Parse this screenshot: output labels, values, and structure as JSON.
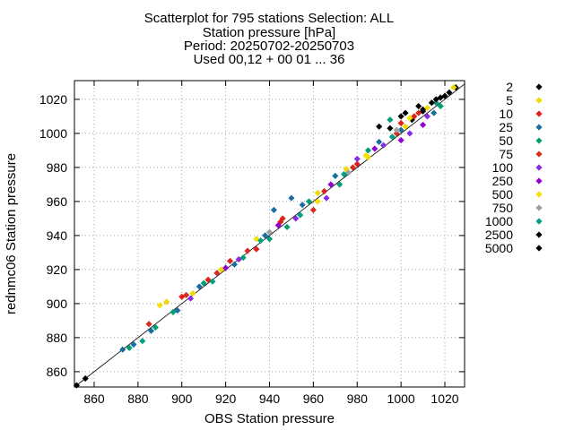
{
  "title_lines": [
    "Scatterplot for  795 stations Selection: ALL",
    "Station pressure [hPa]",
    "Period: 20250702-20250703",
    "Used 00,12 + 00 01 ... 36"
  ],
  "chart_data": {
    "type": "scatter",
    "title": "Scatterplot for  795 stations Selection: ALL",
    "subtitle_lines": [
      "Station pressure [hPa]",
      "Period: 20250702-20250703",
      "Used 00,12 + 00 01 ... 36"
    ],
    "xlabel": "OBS Station pressure",
    "ylabel": "rednmc06 Station pressure",
    "xlim": [
      851,
      1029
    ],
    "ylim": [
      851,
      1031
    ],
    "xticks": [
      860,
      880,
      900,
      920,
      940,
      960,
      980,
      1000,
      1020
    ],
    "yticks": [
      860,
      880,
      900,
      920,
      940,
      960,
      980,
      1000,
      1020
    ],
    "grid": true,
    "legend_position": "right",
    "diagonal": true,
    "series": [
      {
        "name": "2",
        "color": "#000000",
        "points": [
          [
            852,
            852
          ],
          [
            856,
            856
          ],
          [
            1018,
            1021
          ],
          [
            1022,
            1024
          ],
          [
            1025,
            1027
          ],
          [
            1010,
            1014
          ],
          [
            1005,
            1008
          ]
        ]
      },
      {
        "name": "5",
        "color": "#f0d800",
        "points": [
          [
            893,
            901
          ],
          [
            905,
            906
          ],
          [
            918,
            920
          ],
          [
            962,
            965
          ],
          [
            975,
            979
          ],
          [
            985,
            986
          ],
          [
            1002,
            1004
          ],
          [
            1012,
            1015
          ],
          [
            1024,
            1027
          ]
        ]
      },
      {
        "name": "10",
        "color": "#e0201a",
        "points": [
          [
            900,
            904
          ],
          [
            912,
            914
          ],
          [
            922,
            925
          ],
          [
            934,
            932
          ],
          [
            945,
            948
          ],
          [
            965,
            966
          ],
          [
            980,
            982
          ],
          [
            1000,
            1006
          ],
          [
            1006,
            1010
          ]
        ]
      },
      {
        "name": "25",
        "color": "#1a6fa0",
        "points": [
          [
            873,
            873
          ],
          [
            878,
            876
          ],
          [
            886,
            884
          ],
          [
            898,
            896
          ],
          [
            908,
            910
          ],
          [
            924,
            923
          ],
          [
            938,
            940
          ],
          [
            942,
            955
          ],
          [
            950,
            962
          ],
          [
            955,
            958
          ],
          [
            970,
            975
          ],
          [
            990,
            995
          ],
          [
            1000,
            1002
          ],
          [
            1015,
            1012
          ]
        ]
      },
      {
        "name": "50",
        "color": "#009e73",
        "points": [
          [
            876,
            874
          ],
          [
            888,
            886
          ],
          [
            896,
            895
          ],
          [
            910,
            912
          ],
          [
            928,
            927
          ],
          [
            940,
            938
          ],
          [
            948,
            945
          ],
          [
            958,
            960
          ],
          [
            972,
            970
          ],
          [
            985,
            990
          ],
          [
            995,
            1008
          ],
          [
            1018,
            1016
          ]
        ]
      },
      {
        "name": "75",
        "color": "#d62d20",
        "points": [
          [
            885,
            888
          ],
          [
            902,
            905
          ],
          [
            916,
            918
          ],
          [
            930,
            931
          ],
          [
            946,
            950
          ],
          [
            960,
            955
          ],
          [
            978,
            980
          ],
          [
            998,
            1000
          ],
          [
            1008,
            1012
          ]
        ]
      },
      {
        "name": "100",
        "color": "#8a2be2",
        "points": [
          [
            904,
            903
          ],
          [
            926,
            926
          ],
          [
            952,
            950
          ],
          [
            966,
            962
          ],
          [
            980,
            985
          ],
          [
            992,
            993
          ],
          [
            1004,
            1000
          ],
          [
            1012,
            1010
          ]
        ]
      },
      {
        "name": "250",
        "color": "#9400d3",
        "points": [
          [
            920,
            921
          ],
          [
            944,
            946
          ],
          [
            968,
            970
          ],
          [
            988,
            991
          ],
          [
            1000,
            996
          ],
          [
            1010,
            1005
          ]
        ]
      },
      {
        "name": "500",
        "color": "#f5e000",
        "points": [
          [
            890,
            899
          ],
          [
            934,
            938
          ],
          [
            962,
            960
          ],
          [
            984,
            987
          ],
          [
            1004,
            1009
          ]
        ]
      },
      {
        "name": "750",
        "color": "#a0a0a0",
        "points": [
          [
            940,
            942
          ],
          [
            976,
            977
          ],
          [
            998,
            1002
          ]
        ]
      },
      {
        "name": "1000",
        "color": "#00a087",
        "points": [
          [
            882,
            878
          ],
          [
            914,
            913
          ],
          [
            936,
            937
          ],
          [
            954,
            952
          ],
          [
            974,
            976
          ],
          [
            996,
            998
          ],
          [
            1016,
            1018
          ]
        ]
      },
      {
        "name": "2500",
        "color": "#000000",
        "points": [
          [
            990,
            1004
          ],
          [
            995,
            1003
          ],
          [
            1000,
            1010
          ],
          [
            1008,
            1016
          ],
          [
            1014,
            1018
          ],
          [
            1020,
            1022
          ]
        ]
      },
      {
        "name": "5000",
        "color": "#000000",
        "points": [
          [
            1002,
            1012
          ],
          [
            1010,
            1013
          ],
          [
            1016,
            1020
          ]
        ]
      }
    ]
  }
}
